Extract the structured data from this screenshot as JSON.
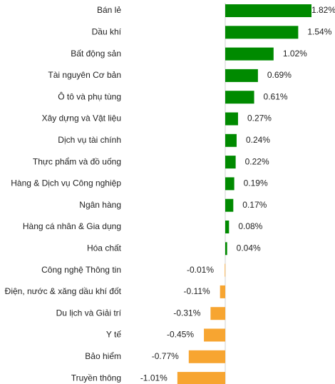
{
  "chart_data": {
    "type": "bar",
    "orientation": "horizontal",
    "categories": [
      "Bán lẻ",
      "Dầu khí",
      "Bất động sản",
      "Tài nguyên Cơ bản",
      "Ô tô và phụ tùng",
      "Xây dựng và Vật liệu",
      "Dịch vụ tài chính",
      "Thực phẩm và đồ uống",
      "Hàng & Dịch vụ Công nghiệp",
      "Ngân hàng",
      "Hàng cá nhân & Gia dụng",
      "Hóa chất",
      "Công nghệ Thông tin",
      "Điện, nước & xăng dầu khí đốt",
      "Du lịch và Giải trí",
      "Y tế",
      "Bảo hiểm",
      "Truyền thông"
    ],
    "values": [
      1.82,
      1.54,
      1.02,
      0.69,
      0.61,
      0.27,
      0.24,
      0.22,
      0.19,
      0.17,
      0.08,
      0.04,
      -0.01,
      -0.11,
      -0.31,
      -0.45,
      -0.77,
      -1.01
    ],
    "value_labels": [
      "1.82%",
      "1.54%",
      "1.02%",
      "0.69%",
      "0.61%",
      "0.27%",
      "0.24%",
      "0.22%",
      "0.19%",
      "0.17%",
      "0.08%",
      "0.04%",
      "-0.01%",
      "-0.11%",
      "-0.31%",
      "-0.45%",
      "-0.77%",
      "-1.01%"
    ],
    "positive_color": "#008a00",
    "negative_color": "#f7a531"
  }
}
